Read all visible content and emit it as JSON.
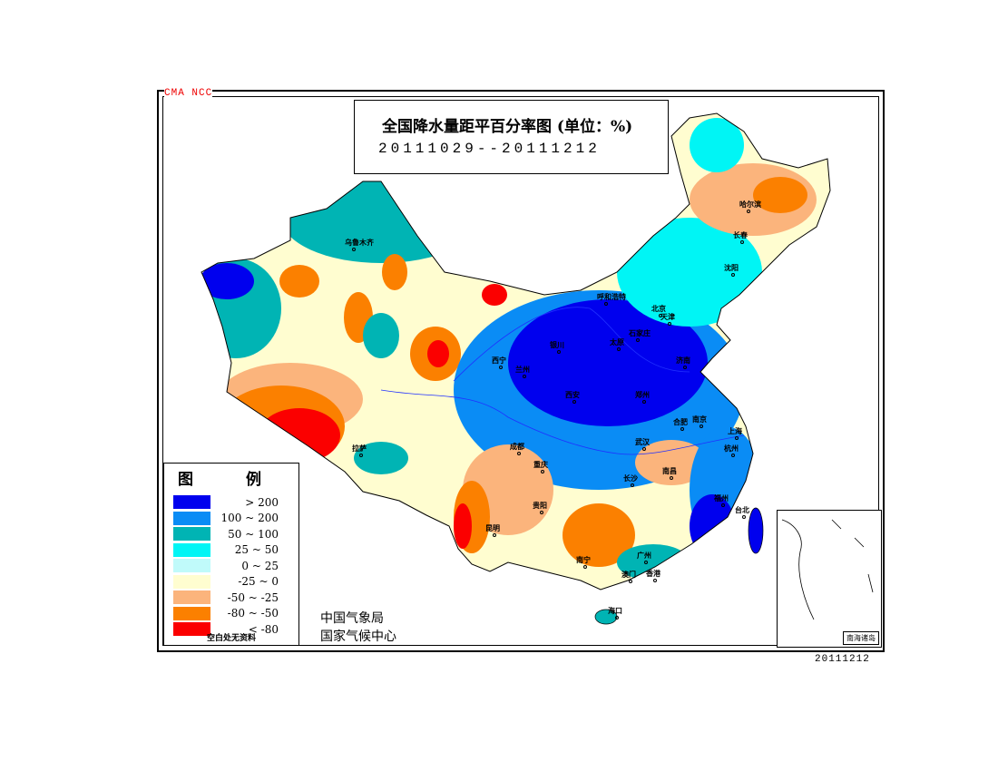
{
  "header": {
    "agency_mark": "CMA NCC",
    "title": "全国降水量距平百分率图 (单位：%)",
    "period": "20111029--20111212"
  },
  "legend": {
    "title": "图 例",
    "items": [
      {
        "label": "> 200",
        "color": "#0000ee"
      },
      {
        "label": "100 ~ 200",
        "color": "#0a8cf5"
      },
      {
        "label": "50 ~ 100",
        "color": "#00b4b4"
      },
      {
        "label": "25 ~ 50",
        "color": "#00f5f5"
      },
      {
        "label": "0 ~ 25",
        "color": "#c0fafa"
      },
      {
        "label": "-25 ~ 0",
        "color": "#fffdd0"
      },
      {
        "label": "-50 ~ -25",
        "color": "#fbb47c"
      },
      {
        "label": "-80 ~ -50",
        "color": "#fb8000"
      },
      {
        "label": "< -80",
        "color": "#fb0000"
      }
    ],
    "note": "空白处无资料"
  },
  "footer": {
    "org1": "中国气象局",
    "org2": "国家气候中心",
    "date": "20111212"
  },
  "inset": {
    "label": "南海诸岛"
  },
  "cities": [
    "乌鲁木齐",
    "哈尔滨",
    "长春",
    "沈阳",
    "呼和浩特",
    "北京",
    "天津",
    "石家庄",
    "太原",
    "济南",
    "银川",
    "西宁",
    "兰州",
    "西安",
    "郑州",
    "合肥",
    "南京",
    "上海",
    "杭州",
    "武汉",
    "成都",
    "重庆",
    "拉萨",
    "长沙",
    "南昌",
    "福州",
    "贵阳",
    "昆明",
    "南宁",
    "广州",
    "澳门",
    "香港",
    "台北",
    "海口"
  ]
}
